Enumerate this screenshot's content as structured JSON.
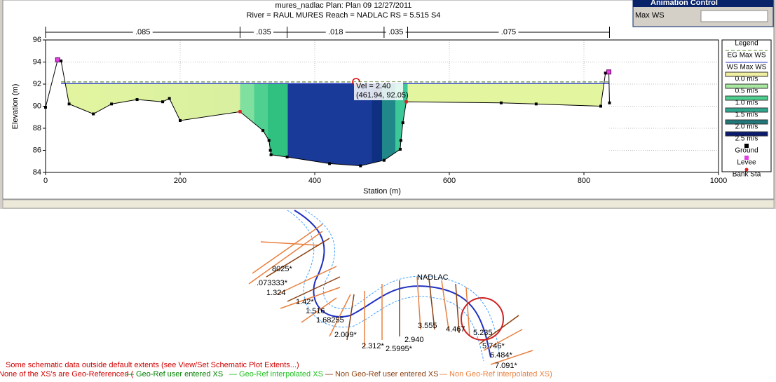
{
  "chart_data": {
    "type": "line",
    "title": "mures_nadlac     Plan: Plan 09    12/27/2011",
    "subtitle": "River = RAUL  MURES    Reach = NADLAC      RS = 5.515   S4",
    "x_label": "Station (m)",
    "y_label": "Elevation (m)",
    "xlim": [
      0,
      1000
    ],
    "xticks": [
      0,
      200,
      400,
      600,
      800,
      1000
    ],
    "ylim": [
      84,
      96
    ],
    "yticks": [
      84,
      86,
      88,
      90,
      92,
      94,
      96
    ],
    "grid": true,
    "n_stations": [
      0,
      289,
      359,
      503,
      538,
      838
    ],
    "n_labels": [
      ".085",
      ".035",
      ".018",
      ".035",
      ".075"
    ],
    "series": [
      {
        "name": "EG Max WS",
        "color": "#5a8a3a",
        "x": [
          23,
          837
        ],
        "values": [
          92.2,
          92.2
        ]
      },
      {
        "name": "WS Max WS",
        "color": "#2030c0",
        "x": [
          23,
          837
        ],
        "values": [
          92.05,
          92.05
        ]
      },
      {
        "name": "Ground",
        "color": "#000000",
        "x": [
          0,
          18,
          23,
          35,
          71,
          98,
          136,
          174,
          184,
          200,
          289,
          323,
          332,
          334,
          335,
          359,
          422,
          468,
          503,
          527,
          528,
          531,
          536,
          677,
          729,
          825,
          832,
          837,
          838
        ],
        "values": [
          89.9,
          94.2,
          94.1,
          90.2,
          89.3,
          90.2,
          90.6,
          90.4,
          90.7,
          88.7,
          89.5,
          87.8,
          86.9,
          86.0,
          85.6,
          85.4,
          84.8,
          84.6,
          85.1,
          86.1,
          86.9,
          88.5,
          90.4,
          90.3,
          90.2,
          90.0,
          93.0,
          93.1,
          90.3
        ]
      },
      {
        "name": "Levee",
        "color": "#e040e0",
        "x": [
          18,
          837
        ],
        "values": [
          94.2,
          93.1
        ]
      },
      {
        "name": "Bank Sta",
        "color": "#e02020",
        "x": [
          289,
          536
        ],
        "values": [
          89.5,
          90.4
        ]
      }
    ],
    "velocity_legend": [
      {
        "name": "0.0 m/s",
        "color": "#f0f0a0"
      },
      {
        "name": "0.5 m/s",
        "color": "#a8e8a0"
      },
      {
        "name": "1.0 m/s",
        "color": "#50d090"
      },
      {
        "name": "1.5 m/s",
        "color": "#30a890"
      },
      {
        "name": "2.0 m/s",
        "color": "#207878"
      },
      {
        "name": "2.5 m/s",
        "color": "#0a1a70"
      }
    ],
    "legend_title": "Legend",
    "tooltip": {
      "line1": "Vel = 2.40",
      "line2": "(461.94, 92.05)"
    }
  },
  "animation_control": {
    "title": "Animation Control",
    "profile": "Max WS"
  },
  "schematic": {
    "reach": "NADLAC",
    "labels": [
      "8025*",
      ".073333*",
      "1.324",
      "1.42*",
      "1.516",
      "1.68255",
      "2.009*",
      "2.312*",
      "2.5995*",
      "2.940",
      "3.555",
      "4.467",
      "5.235",
      "5.746*",
      "6.484*",
      "7.091*"
    ],
    "message": "Some schematic data outside default extents (see View/Set Schematic Plot Extents...)",
    "georef_note": "None of the XS's are Geo-Referenced (",
    "key": [
      "— Geo-Ref user entered XS",
      "— Geo-Ref interpolated XS",
      "— Non Geo-Ref user entered XS",
      "— Non Geo-Ref interpolated XS)"
    ]
  }
}
